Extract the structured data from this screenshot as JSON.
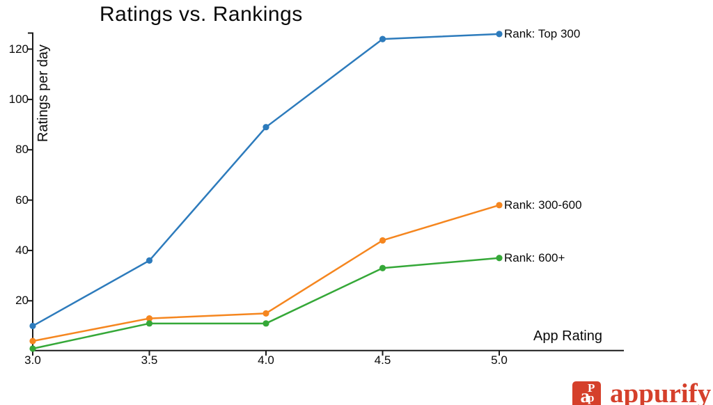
{
  "chart_data": {
    "type": "line",
    "title": "Ratings vs. Rankings",
    "xlabel": "App Rating",
    "ylabel": "Ratings per day",
    "x": [
      3.0,
      3.5,
      4.0,
      4.5,
      5.0
    ],
    "xtick_labels": [
      "3.0",
      "3.5",
      "4.0",
      "4.5",
      "5.0"
    ],
    "ytick_values": [
      20,
      40,
      60,
      80,
      100,
      120
    ],
    "xlim": [
      3.0,
      5.0
    ],
    "ylim": [
      0,
      126.5
    ],
    "grid": false,
    "legend_position": "line-end-labels",
    "axis_color": "#1a1a1a",
    "series": [
      {
        "name": "Rank: Top 300",
        "color": "#2d7bbc",
        "values": [
          10,
          36,
          89,
          124,
          126
        ]
      },
      {
        "name": "Rank: 300-600",
        "color": "#f5861f",
        "values": [
          4,
          13,
          15,
          44,
          58
        ]
      },
      {
        "name": "Rank: 600+",
        "color": "#35a838",
        "values": [
          1,
          11,
          11,
          33,
          37
        ]
      }
    ]
  },
  "logo": {
    "brand": "appurify",
    "monogram_left": "a",
    "monogram_right_top": "P",
    "monogram_right_bottom": "p",
    "color": "#d5402b"
  }
}
